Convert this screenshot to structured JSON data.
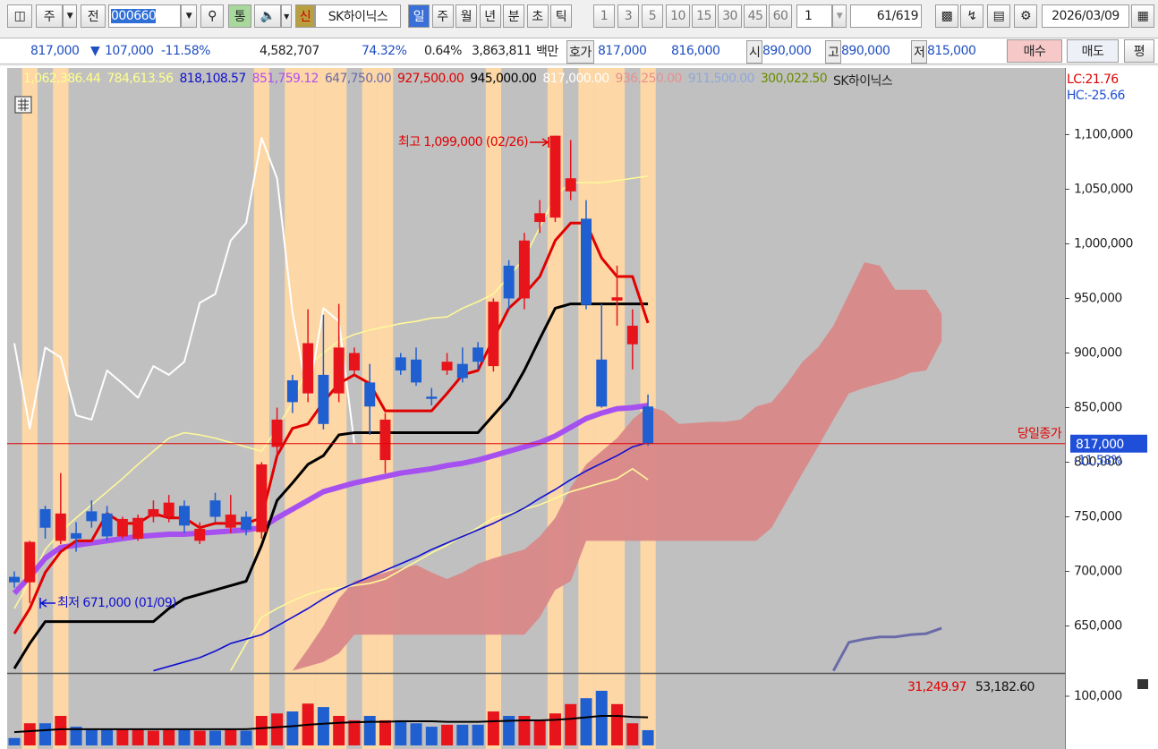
{
  "toolbar": {
    "market": "주",
    "mode": "전",
    "code": "000660",
    "tong": "통",
    "sin": "신",
    "name": "SK하이닉스",
    "periods": [
      "일",
      "주",
      "월",
      "년",
      "분",
      "초",
      "틱"
    ],
    "intervals": [
      "1",
      "3",
      "5",
      "10",
      "15",
      "30",
      "45",
      "60"
    ],
    "count_select": "1",
    "count": "61",
    "total": "/619",
    "date": "2026/03/09"
  },
  "quote_bar": {
    "price": "817,000",
    "arrow": "▼",
    "change": "107,000",
    "change_pct": "-11.58%",
    "volume": "4,582,707",
    "ratio": "74.32%",
    "turnover_pct": "0.64%",
    "amount": "3,863,811",
    "amount_unit": "백만",
    "quote_label": "호가",
    "ask": "817,000",
    "bid": "816,000",
    "open_label": "시",
    "open": "890,000",
    "high_label": "고",
    "high": "890,000",
    "low_label": "저",
    "low": "815,000",
    "buy": "매수",
    "sell": "매도",
    "avg": "평"
  },
  "chart_data": {
    "type": "candlestick",
    "background": "#c0c0c0",
    "up_color": "#e8141c",
    "down_color": "#1f5fd0",
    "highlight_color": "#fdd7a6",
    "legend": [
      {
        "text": "1,062,386.44",
        "color": "#ffff90"
      },
      {
        "text": "784,613.56",
        "color": "#ffff90"
      },
      {
        "text": "818,108.57",
        "color": "#1010d0"
      },
      {
        "text": "851,759.12",
        "color": "#b050f0"
      },
      {
        "text": "647,750.00",
        "color": "#6a6aa8"
      },
      {
        "text": "927,500.00",
        "color": "#e00000"
      },
      {
        "text": "945,000.00",
        "color": "#000000"
      },
      {
        "text": "817,000.00",
        "color": "#ffffff"
      },
      {
        "text": "936,250.00",
        "color": "#e89090"
      },
      {
        "text": "911,500.00",
        "color": "#90a8d8"
      },
      {
        "text": "300,022.50",
        "color": "#6a8a00"
      },
      {
        "text": "SK하이닉스",
        "color": "#222222"
      }
    ],
    "lc": "LC:21.76",
    "hc": "HC:-25.66",
    "ylim": [
      607000,
      1161000
    ],
    "yticks": [
      {
        "value": 650000,
        "label": "650,000"
      },
      {
        "value": 700000,
        "label": "700,000"
      },
      {
        "value": 750000,
        "label": "750,000"
      },
      {
        "value": 800000,
        "label": "800,000"
      },
      {
        "value": 850000,
        "label": "850,000"
      },
      {
        "value": 900000,
        "label": "900,000"
      },
      {
        "value": 950000,
        "label": "950,000"
      },
      {
        "value": 1000000,
        "label": "1,000,000"
      },
      {
        "value": 1050000,
        "label": "1,050,000"
      },
      {
        "value": 1100000,
        "label": "1,100,000"
      }
    ],
    "highlight": [
      false,
      true,
      false,
      true,
      false,
      false,
      false,
      false,
      false,
      false,
      false,
      false,
      false,
      false,
      false,
      false,
      true,
      false,
      true,
      true,
      true,
      true,
      false,
      true,
      true,
      false,
      false,
      false,
      false,
      false,
      false,
      true,
      false,
      false,
      false,
      true,
      false,
      true,
      true,
      true,
      false,
      true
    ],
    "candles": {
      "open": [
        695000,
        690000,
        757000,
        728000,
        735000,
        755000,
        753000,
        732000,
        730000,
        750000,
        750000,
        760000,
        728000,
        765000,
        740000,
        750000,
        736000,
        814000,
        875000,
        863000,
        880000,
        863000,
        884000,
        873000,
        802000,
        896000,
        894000,
        860000,
        884000,
        890000,
        905000,
        888000,
        980000,
        950000,
        1020000,
        1024000,
        1048000,
        1023000,
        894000,
        948000,
        908000,
        851000
      ],
      "high": [
        700000,
        728000,
        760000,
        790000,
        745000,
        765000,
        760000,
        750000,
        752000,
        765000,
        770000,
        765000,
        745000,
        772000,
        770000,
        755000,
        800000,
        850000,
        880000,
        940000,
        935000,
        945000,
        905000,
        890000,
        845000,
        900000,
        905000,
        868000,
        900000,
        905000,
        910000,
        950000,
        985000,
        1010000,
        1040000,
        1099000,
        1095000,
        1040000,
        945000,
        980000,
        940000,
        862000
      ],
      "low": [
        685000,
        671000,
        730000,
        725000,
        718000,
        740000,
        728000,
        730000,
        728000,
        745000,
        745000,
        735000,
        725000,
        745000,
        735000,
        733000,
        730000,
        805000,
        845000,
        855000,
        830000,
        855000,
        880000,
        825000,
        790000,
        880000,
        870000,
        852000,
        880000,
        873000,
        885000,
        883000,
        940000,
        940000,
        1010000,
        1020000,
        1040000,
        940000,
        850000,
        925000,
        885000,
        815000
      ],
      "close": [
        690000,
        727000,
        740000,
        753000,
        730000,
        746000,
        732000,
        748000,
        749000,
        757000,
        763000,
        742000,
        739000,
        750000,
        752000,
        738000,
        798000,
        839000,
        855000,
        909000,
        835000,
        905000,
        900000,
        851000,
        839000,
        884000,
        873000,
        858000,
        892000,
        877000,
        892000,
        947000,
        950000,
        1003000,
        1028000,
        1099000,
        1060000,
        944000,
        851000,
        951000,
        925000,
        817000
      ]
    },
    "lines": [
      {
        "color": "#fff89a",
        "width": 1.6,
        "values": [
          666000,
          691000,
          720000,
          736000,
          749000,
          761000,
          773000,
          785000,
          798000,
          810000,
          822000,
          827000,
          825000,
          822000,
          818000,
          814000,
          810000,
          831000,
          855000,
          888000,
          900000,
          911000,
          917000,
          921000,
          924000,
          927000,
          929000,
          932000,
          933000,
          941000,
          947000,
          954000,
          970000,
          987000,
          1015000,
          1044000,
          1056000,
          1056000,
          1056000,
          1058000,
          1060000,
          1062000
        ]
      },
      {
        "color": "#fff89a",
        "width": 1.6,
        "values": [
          null,
          null,
          null,
          null,
          null,
          null,
          null,
          null,
          null,
          null,
          null,
          null,
          null,
          null,
          609000,
          634000,
          658000,
          666000,
          673000,
          679000,
          683000,
          685000,
          687000,
          689000,
          693000,
          701000,
          709000,
          717000,
          724000,
          732000,
          740000,
          749000,
          753000,
          757000,
          761000,
          767000,
          773000,
          777000,
          781000,
          785000,
          794000,
          784000
        ]
      },
      {
        "color": "#1010d0",
        "width": 1.6,
        "values": [
          null,
          null,
          null,
          null,
          null,
          null,
          null,
          null,
          null,
          609000,
          613000,
          617000,
          621000,
          627000,
          634000,
          638000,
          642000,
          650000,
          658000,
          666000,
          675000,
          683000,
          689000,
          695000,
          701000,
          707000,
          713000,
          720000,
          726000,
          732000,
          738000,
          744000,
          751000,
          758000,
          767000,
          775000,
          784000,
          792000,
          799000,
          806000,
          814000,
          818000
        ]
      },
      {
        "color": "#a650f0",
        "width": 6,
        "values": [
          680000,
          695000,
          712000,
          722000,
          724000,
          726000,
          728000,
          730000,
          732000,
          733000,
          734000,
          734000,
          735000,
          736000,
          737000,
          738000,
          740000,
          749000,
          757000,
          765000,
          773000,
          777000,
          781000,
          784000,
          787000,
          790000,
          792000,
          794000,
          797000,
          799000,
          802000,
          806000,
          810000,
          814000,
          818000,
          824000,
          832000,
          840000,
          845000,
          849000,
          850000,
          852000
        ]
      },
      {
        "color": "#ffffff",
        "width": 2,
        "values": [
          909000,
          831000,
          905000,
          896000,
          843000,
          839000,
          884000,
          872000,
          859000,
          888000,
          880000,
          892000,
          946000,
          954000,
          1003000,
          1019000,
          1097000,
          1060000,
          937000,
          859000,
          941000,
          929000,
          817000,
          null,
          null,
          null,
          null,
          null,
          null,
          null,
          null,
          null,
          null,
          null,
          null,
          null,
          null,
          null,
          null,
          null,
          null,
          null
        ]
      },
      {
        "color": "#000000",
        "width": 3,
        "values": [
          611000,
          634000,
          654000,
          654000,
          654000,
          654000,
          654000,
          654000,
          654000,
          654000,
          666000,
          675000,
          679000,
          683000,
          687000,
          691000,
          724000,
          765000,
          781000,
          798000,
          806000,
          825000,
          827000,
          827000,
          827000,
          827000,
          827000,
          827000,
          827000,
          827000,
          827000,
          843000,
          859000,
          884000,
          913000,
          941000,
          945000,
          945000,
          945000,
          945000,
          945000,
          945000
        ]
      },
      {
        "color": "#e00000",
        "width": 3,
        "values": [
          643000,
          666000,
          699000,
          718000,
          728000,
          728000,
          753000,
          744000,
          744000,
          753000,
          749000,
          749000,
          740000,
          744000,
          744000,
          744000,
          749000,
          806000,
          831000,
          835000,
          855000,
          872000,
          880000,
          872000,
          847000,
          847000,
          847000,
          847000,
          863000,
          880000,
          884000,
          913000,
          941000,
          954000,
          970000,
          1003000,
          1019000,
          1019000,
          987000,
          970000,
          970000,
          927500
        ]
      },
      {
        "color": "#6a6aa8",
        "width": 3,
        "values": [
          null,
          null,
          null,
          null,
          null,
          null,
          null,
          null,
          null,
          null,
          null,
          null,
          null,
          null,
          null,
          null,
          null,
          null,
          null,
          null,
          null,
          null,
          null,
          null,
          null,
          null,
          null,
          null,
          null,
          null,
          null,
          null,
          null,
          null,
          null,
          null,
          null,
          null,
          null,
          null,
          null,
          null,
          null,
          null,
          null,
          null,
          null,
          null,
          null,
          null,
          null,
          null,
          null,
          609000,
          635000,
          638000,
          640000,
          640000,
          642000,
          643000,
          648000
        ]
      }
    ],
    "cloud": {
      "color": "#d98888",
      "upper": [
        null,
        null,
        null,
        null,
        null,
        null,
        null,
        null,
        null,
        null,
        null,
        null,
        null,
        null,
        null,
        null,
        null,
        null,
        609000,
        629000,
        650000,
        675000,
        691000,
        695000,
        699000,
        703000,
        706000,
        699000,
        693000,
        699000,
        707000,
        712000,
        716000,
        720000,
        732000,
        749000,
        777000,
        798000,
        810000,
        822000,
        839000,
        851000,
        847000,
        835000,
        836000,
        837000,
        837000,
        839000,
        851000,
        855000,
        872000,
        892000,
        905000,
        925000,
        954000,
        983000,
        980000,
        958000,
        958000,
        958000,
        936000
      ],
      "lower": [
        null,
        null,
        null,
        null,
        null,
        null,
        null,
        null,
        null,
        null,
        null,
        null,
        null,
        null,
        null,
        null,
        null,
        null,
        609000,
        613000,
        617000,
        625000,
        642000,
        642000,
        642000,
        642000,
        642000,
        642000,
        642000,
        642000,
        642000,
        642000,
        642000,
        642000,
        658000,
        683000,
        691000,
        728000,
        728000,
        728000,
        728000,
        728000,
        728000,
        728000,
        728000,
        728000,
        728000,
        728000,
        728000,
        740000,
        765000,
        790000,
        814000,
        839000,
        863000,
        868000,
        872000,
        876000,
        882000,
        884000,
        911000
      ]
    },
    "last_price": {
      "value": 817000,
      "label": "817,000",
      "change": "-11.58%",
      "caption": "당일종가",
      "color": "#e00000",
      "tag_color": "#1f4fd8"
    },
    "annotations": [
      {
        "text": "최고 1,099,000 (02/26)",
        "color": "#e00000"
      },
      {
        "text": "최저 671,000 (01/09)",
        "color": "#1010d0"
      }
    ],
    "volume": {
      "ylim": [
        0,
        140000
      ],
      "yticks": [
        {
          "value": 100000,
          "label": "100,000"
        }
      ],
      "values": [
        15000,
        45000,
        45000,
        60000,
        38000,
        33000,
        33000,
        33000,
        33000,
        30000,
        33000,
        33000,
        30000,
        30000,
        33000,
        30000,
        60000,
        65000,
        69000,
        85000,
        78000,
        60000,
        51000,
        60000,
        51000,
        51000,
        45000,
        38000,
        42000,
        42000,
        42000,
        69000,
        60000,
        60000,
        51000,
        65000,
        84000,
        96000,
        111000,
        84000,
        45000,
        31000
      ],
      "ma": {
        "color": "#000000",
        "values": [
          27000,
          29000,
          31000,
          33000,
          33000,
          33000,
          33000,
          33000,
          33000,
          33000,
          33000,
          33000,
          33000,
          33000,
          33000,
          33000,
          35000,
          37000,
          39000,
          42000,
          44000,
          46000,
          47000,
          48000,
          48000,
          49000,
          49000,
          49000,
          48000,
          48000,
          48000,
          49000,
          50000,
          51000,
          51000,
          52000,
          54000,
          57000,
          60000,
          60000,
          58000,
          57000
        ]
      },
      "legend": [
        {
          "text": "31,249.97",
          "color": "#e00000"
        },
        {
          "text": "53,182.60",
          "color": "#111111"
        }
      ]
    }
  }
}
